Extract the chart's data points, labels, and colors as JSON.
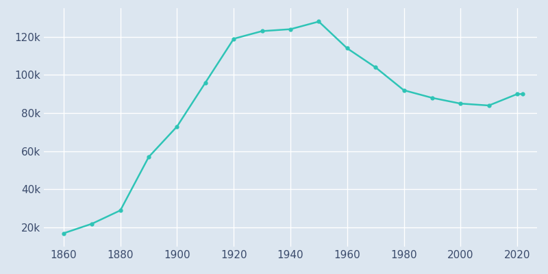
{
  "years": [
    1860,
    1870,
    1880,
    1890,
    1900,
    1910,
    1920,
    1930,
    1940,
    1950,
    1960,
    1970,
    1980,
    1990,
    2000,
    2010,
    2020,
    2022
  ],
  "population": [
    17000,
    22000,
    29000,
    57000,
    73000,
    96000,
    119000,
    123000,
    124000,
    128000,
    114000,
    104000,
    92000,
    88000,
    85000,
    84000,
    90000,
    90000
  ],
  "line_color": "#2EC4B6",
  "marker": "o",
  "marker_size": 3.5,
  "line_width": 1.8,
  "figure_bg": "#dce6f0",
  "plot_bg": "#dce6f0",
  "grid_color": "#ffffff",
  "tick_label_color": "#3a4a6b",
  "ylim": [
    10000,
    135000
  ],
  "xlim": [
    1853,
    2027
  ],
  "yticks": [
    20000,
    40000,
    60000,
    80000,
    100000,
    120000
  ],
  "xticks": [
    1860,
    1880,
    1900,
    1920,
    1940,
    1960,
    1980,
    2000,
    2020
  ]
}
